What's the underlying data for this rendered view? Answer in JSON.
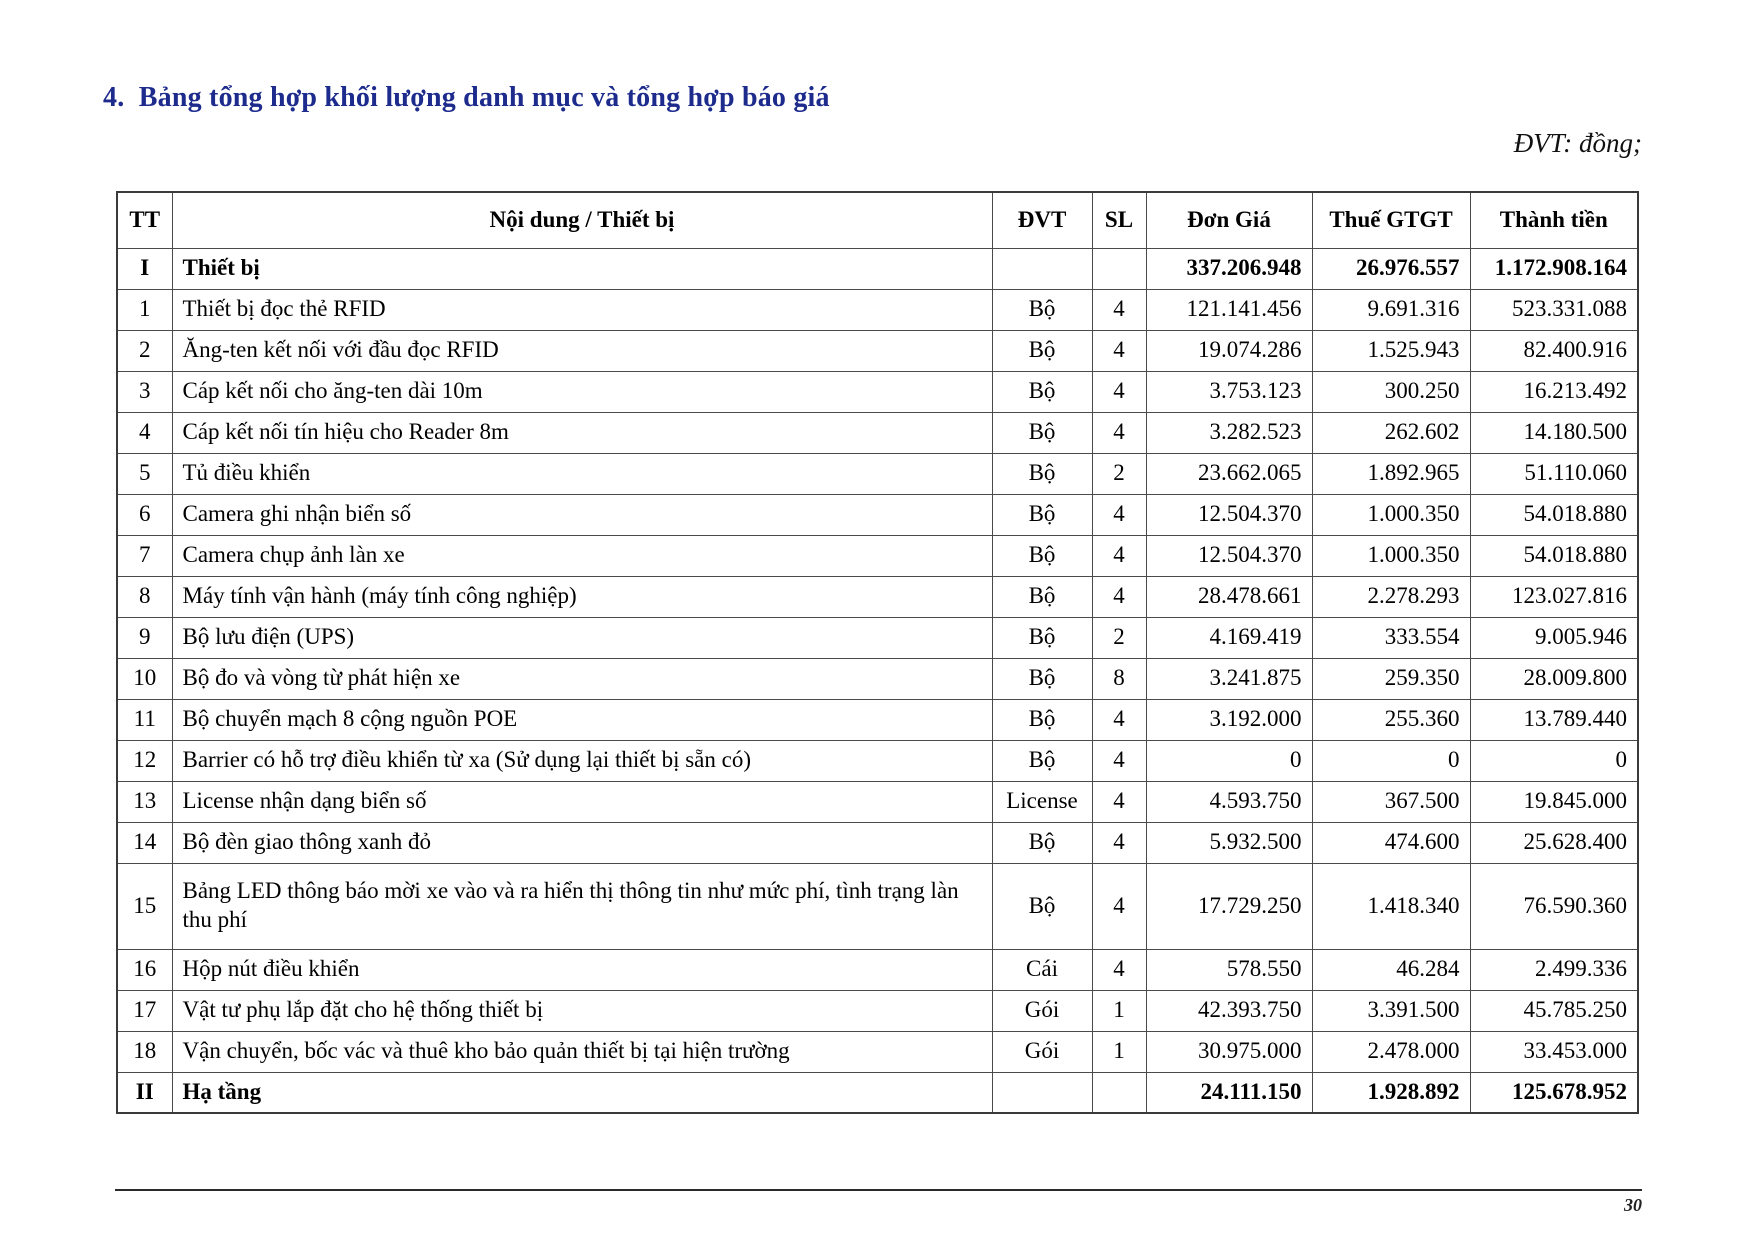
{
  "page": {
    "title": "4.  Bảng tổng hợp khối lượng danh mục và tổng hợp báo giá",
    "unit_note": "ĐVT: đồng;",
    "page_number": "30"
  },
  "table": {
    "columns": [
      "TT",
      "Nội dung / Thiết bị",
      "ĐVT",
      "SL",
      "Đơn Giá",
      "Thuế GTGT",
      "Thành tiền"
    ],
    "rows": [
      {
        "tt": "I",
        "content": "Thiết bị",
        "dvt": "",
        "sl": "",
        "don_gia": "337.206.948",
        "thue_gtgt": "26.976.557",
        "thanh_tien": "1.172.908.164",
        "bold": true
      },
      {
        "tt": "1",
        "content": "Thiết bị đọc thẻ RFID",
        "dvt": "Bộ",
        "sl": "4",
        "don_gia": "121.141.456",
        "thue_gtgt": "9.691.316",
        "thanh_tien": "523.331.088",
        "bold": false
      },
      {
        "tt": "2",
        "content": "Ăng-ten kết nối với đầu đọc RFID",
        "dvt": "Bộ",
        "sl": "4",
        "don_gia": "19.074.286",
        "thue_gtgt": "1.525.943",
        "thanh_tien": "82.400.916",
        "bold": false
      },
      {
        "tt": "3",
        "content": "Cáp kết nối cho ăng-ten dài 10m",
        "dvt": "Bộ",
        "sl": "4",
        "don_gia": "3.753.123",
        "thue_gtgt": "300.250",
        "thanh_tien": "16.213.492",
        "bold": false
      },
      {
        "tt": "4",
        "content": "Cáp kết nối tín hiệu cho Reader 8m",
        "dvt": "Bộ",
        "sl": "4",
        "don_gia": "3.282.523",
        "thue_gtgt": "262.602",
        "thanh_tien": "14.180.500",
        "bold": false
      },
      {
        "tt": "5",
        "content": "Tủ điều khiển",
        "dvt": "Bộ",
        "sl": "2",
        "don_gia": "23.662.065",
        "thue_gtgt": "1.892.965",
        "thanh_tien": "51.110.060",
        "bold": false
      },
      {
        "tt": "6",
        "content": "Camera ghi nhận biển số",
        "dvt": "Bộ",
        "sl": "4",
        "don_gia": "12.504.370",
        "thue_gtgt": "1.000.350",
        "thanh_tien": "54.018.880",
        "bold": false
      },
      {
        "tt": "7",
        "content": "Camera chụp ảnh làn xe",
        "dvt": "Bộ",
        "sl": "4",
        "don_gia": "12.504.370",
        "thue_gtgt": "1.000.350",
        "thanh_tien": "54.018.880",
        "bold": false
      },
      {
        "tt": "8",
        "content": "Máy tính vận hành (máy tính công nghiệp)",
        "dvt": "Bộ",
        "sl": "4",
        "don_gia": "28.478.661",
        "thue_gtgt": "2.278.293",
        "thanh_tien": "123.027.816",
        "bold": false
      },
      {
        "tt": "9",
        "content": "Bộ lưu điện (UPS)",
        "dvt": "Bộ",
        "sl": "2",
        "don_gia": "4.169.419",
        "thue_gtgt": "333.554",
        "thanh_tien": "9.005.946",
        "bold": false
      },
      {
        "tt": "10",
        "content": "Bộ đo và vòng từ phát hiện xe",
        "dvt": "Bộ",
        "sl": "8",
        "don_gia": "3.241.875",
        "thue_gtgt": "259.350",
        "thanh_tien": "28.009.800",
        "bold": false
      },
      {
        "tt": "11",
        "content": "Bộ chuyển mạch 8 cộng nguồn POE",
        "dvt": "Bộ",
        "sl": "4",
        "don_gia": "3.192.000",
        "thue_gtgt": "255.360",
        "thanh_tien": "13.789.440",
        "bold": false
      },
      {
        "tt": "12",
        "content": "Barrier có hỗ trợ điều khiển từ xa (Sử dụng lại thiết bị sẵn có)",
        "dvt": "Bộ",
        "sl": "4",
        "don_gia": "0",
        "thue_gtgt": "0",
        "thanh_tien": "0",
        "bold": false
      },
      {
        "tt": "13",
        "content": "License nhận dạng biển số",
        "dvt": "License",
        "sl": "4",
        "don_gia": "4.593.750",
        "thue_gtgt": "367.500",
        "thanh_tien": "19.845.000",
        "bold": false
      },
      {
        "tt": "14",
        "content": "Bộ đèn giao thông xanh đỏ",
        "dvt": "Bộ",
        "sl": "4",
        "don_gia": "5.932.500",
        "thue_gtgt": "474.600",
        "thanh_tien": "25.628.400",
        "bold": false
      },
      {
        "tt": "15",
        "content": "Bảng LED thông báo mời xe vào và ra hiển thị thông tin như mức phí, tình trạng làn thu phí",
        "dvt": "Bộ",
        "sl": "4",
        "don_gia": "17.729.250",
        "thue_gtgt": "1.418.340",
        "thanh_tien": "76.590.360",
        "bold": false,
        "tall": true
      },
      {
        "tt": "16",
        "content": "Hộp nút điều khiển",
        "dvt": "Cái",
        "sl": "4",
        "don_gia": "578.550",
        "thue_gtgt": "46.284",
        "thanh_tien": "2.499.336",
        "bold": false
      },
      {
        "tt": "17",
        "content": "Vật tư phụ lắp đặt cho hệ thống thiết bị",
        "dvt": "Gói",
        "sl": "1",
        "don_gia": "42.393.750",
        "thue_gtgt": "3.391.500",
        "thanh_tien": "45.785.250",
        "bold": false
      },
      {
        "tt": "18",
        "content": "Vận chuyển, bốc vác và thuê kho bảo quản thiết bị tại hiện trường",
        "dvt": "Gói",
        "sl": "1",
        "don_gia": "30.975.000",
        "thue_gtgt": "2.478.000",
        "thanh_tien": "33.453.000",
        "bold": false
      },
      {
        "tt": "II",
        "content": "Hạ tầng",
        "dvt": "",
        "sl": "",
        "don_gia": "24.111.150",
        "thue_gtgt": "1.928.892",
        "thanh_tien": "125.678.952",
        "bold": true
      }
    ]
  }
}
